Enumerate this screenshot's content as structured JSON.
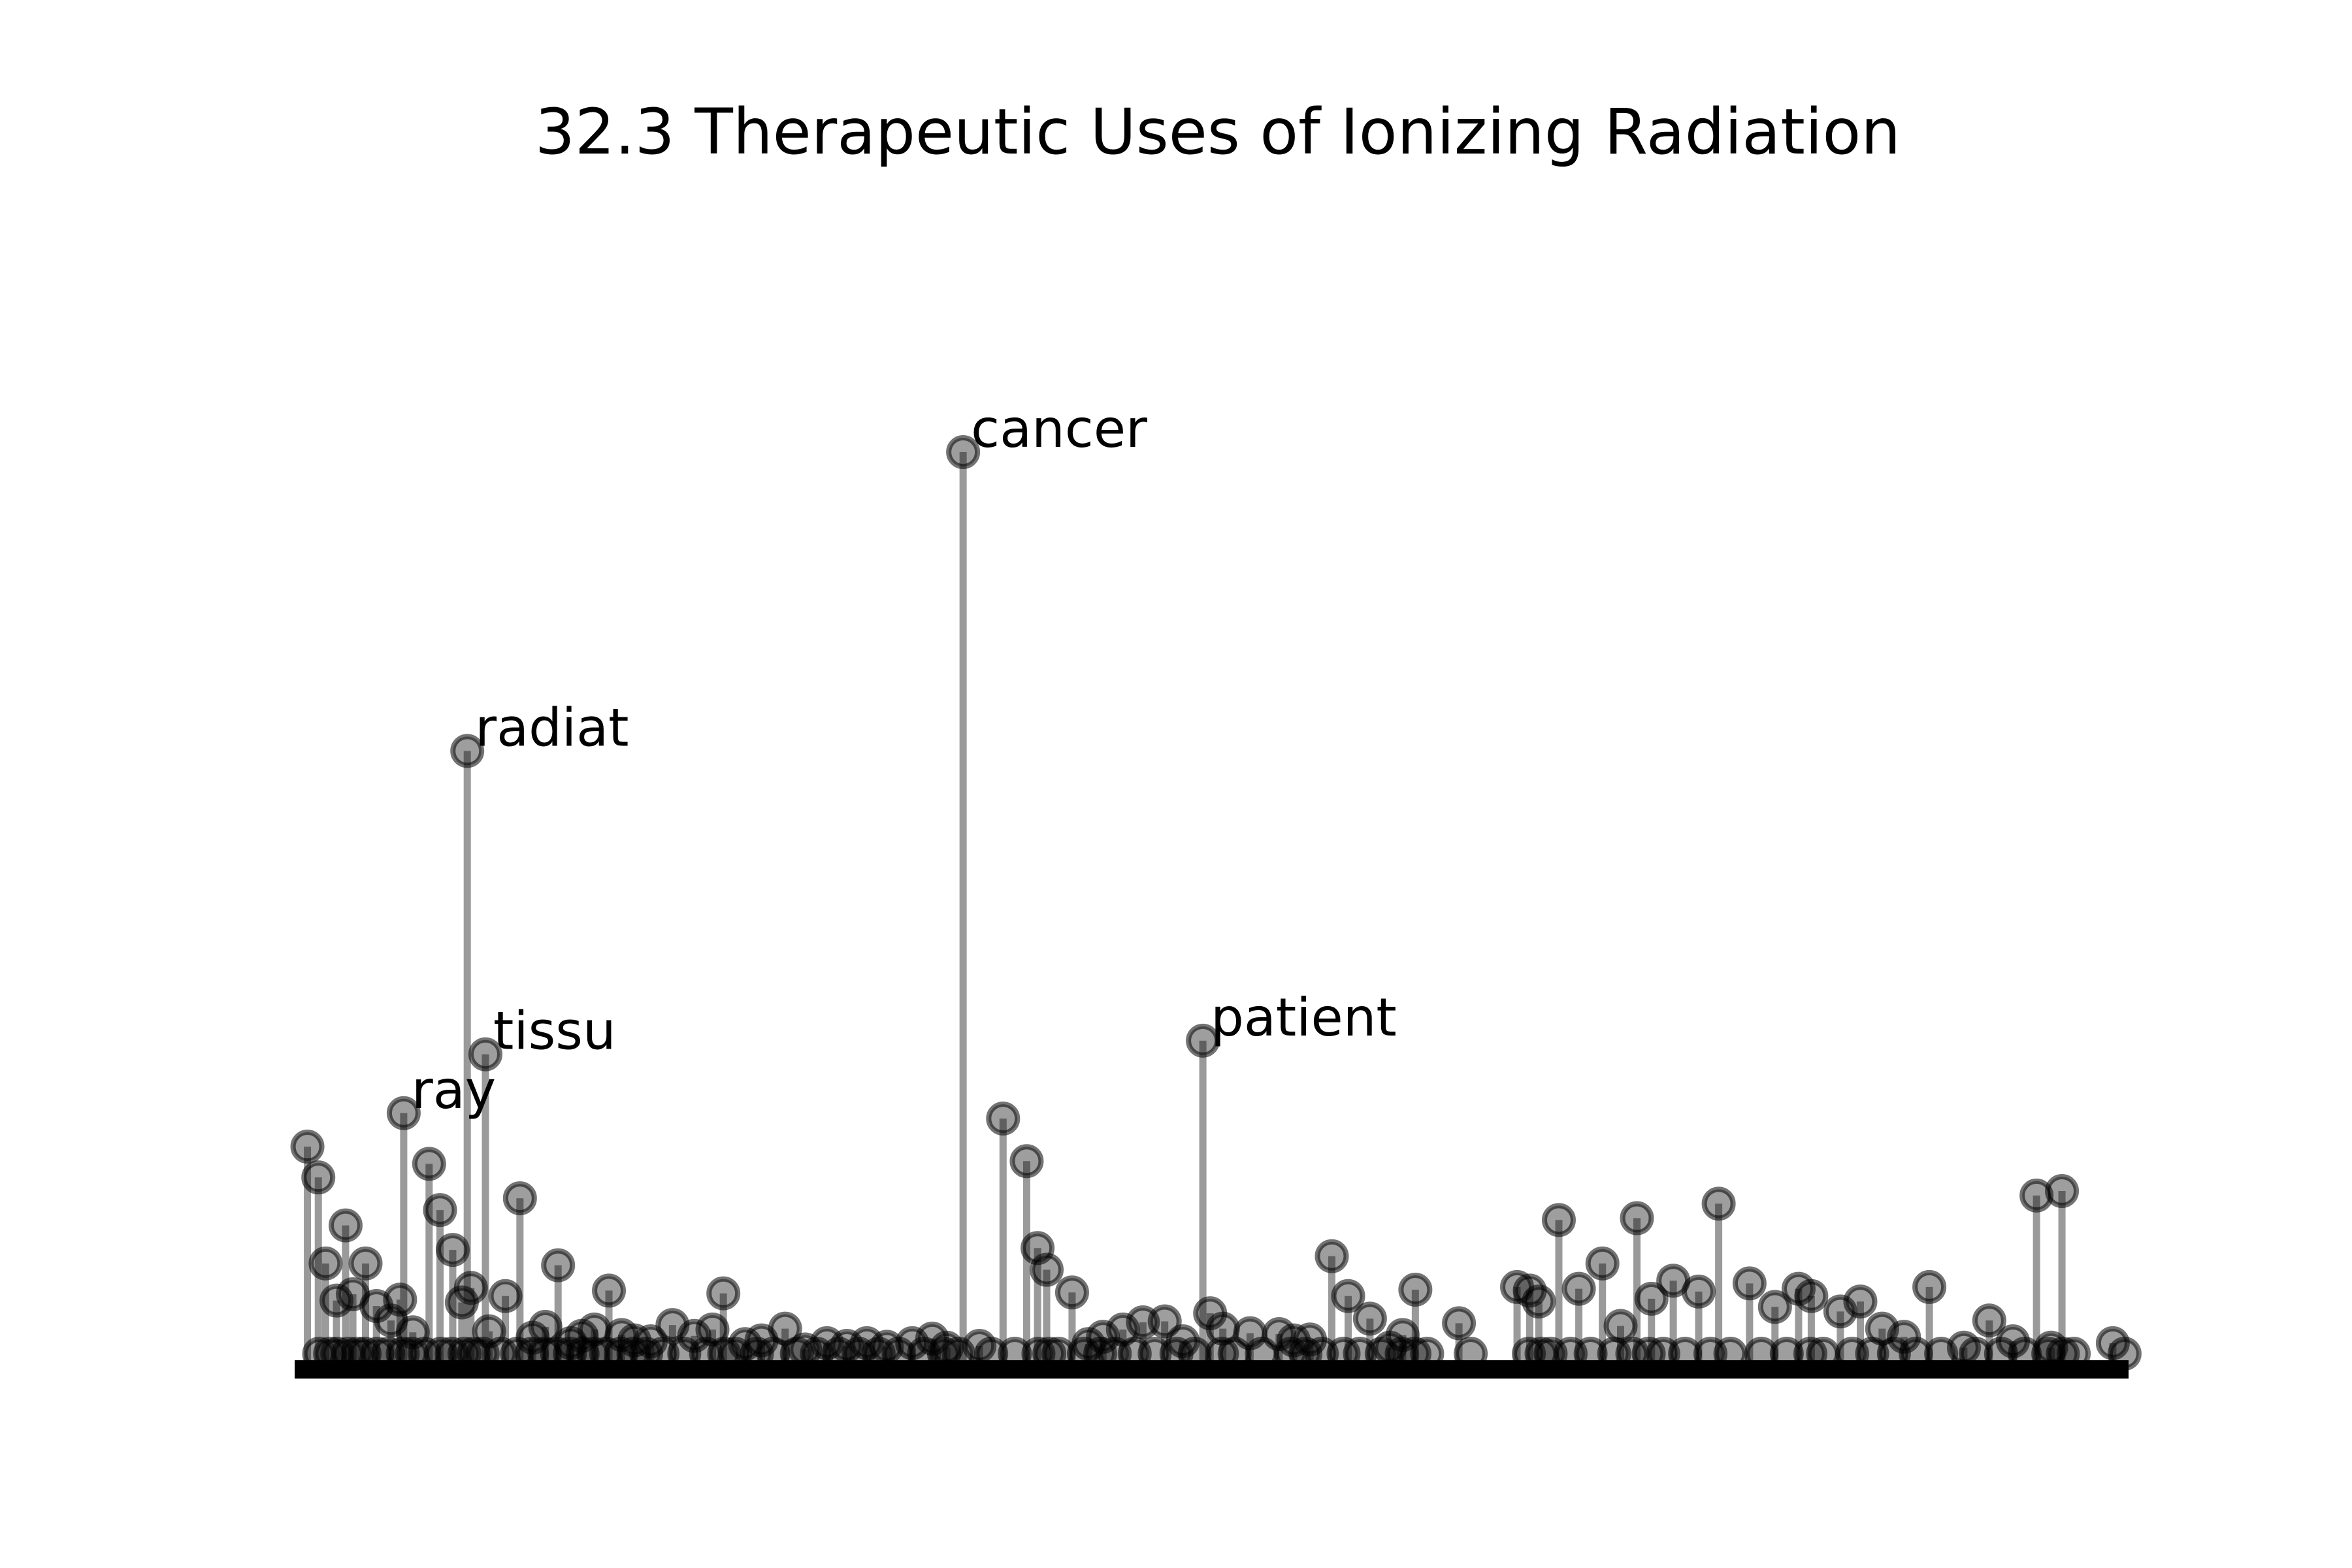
{
  "chart_data": {
    "type": "scatter",
    "subtype": "stem",
    "title": "32.3 Therapeutic Uses of Ionizing Radiation",
    "xlabel": "",
    "ylabel": "",
    "axes_visible": false,
    "grid": false,
    "marker_color": "#000000",
    "stem_color": "#9a9a9a",
    "baseline_color": "#000000",
    "xlim": [
      0,
      100
    ],
    "ylim": [
      0,
      100
    ],
    "labeled_points": [
      {
        "label": "cancer",
        "x": 36.3,
        "y": 100
      },
      {
        "label": "radiat",
        "x": 9.0,
        "y": 67
      },
      {
        "label": "patient",
        "x": 49.5,
        "y": 35
      },
      {
        "label": "tissu",
        "x": 10.0,
        "y": 33.5
      },
      {
        "label": "ray",
        "x": 5.5,
        "y": 27
      }
    ],
    "x": [
      0.2,
      0.8,
      1.2,
      1.8,
      2.3,
      2.7,
      3.4,
      4.0,
      4.8,
      5.3,
      6.0,
      6.9,
      7.5,
      8.2,
      8.7,
      9.2,
      10.2,
      11.1,
      11.9,
      12.6,
      13.3,
      14.0,
      14.7,
      15.3,
      16.0,
      16.8,
      17.5,
      18.2,
      19.1,
      20.3,
      21.5,
      22.5,
      23.1,
      24.3,
      25.2,
      26.5,
      27.6,
      28.8,
      29.9,
      31.0,
      32.1,
      33.5,
      34.6,
      35.4,
      37.2,
      38.5,
      39.8,
      40.4,
      40.9,
      42.3,
      43.2,
      44.0,
      45.1,
      46.2,
      47.4,
      48.4,
      49.9,
      50.6,
      52.1,
      53.7,
      54.5,
      55.4,
      56.6,
      57.5,
      58.7,
      59.8,
      60.5,
      61.2,
      63.6,
      66.8,
      67.5,
      68.0,
      69.1,
      70.2,
      71.5,
      72.5,
      73.4,
      74.2,
      75.4,
      76.8,
      77.9,
      79.6,
      81.0,
      82.3,
      83.0,
      84.6,
      85.7,
      86.9,
      88.1,
      89.5,
      91.4,
      92.8,
      94.1,
      95.4,
      96.2,
      96.8,
      99.6
    ],
    "y": [
      23.3,
      19.9,
      10.4,
      6.3,
      14.6,
      7.0,
      10.4,
      5.7,
      4.1,
      6.4,
      2.8,
      21.4,
      16.3,
      11.9,
      6.1,
      7.7,
      2.9,
      6.8,
      17.6,
      2.2,
      3.4,
      10.2,
      1.6,
      2.4,
      3.1,
      7.4,
      2.5,
      1.9,
      1.8,
      3.6,
      2.4,
      3.1,
      7.1,
      1.5,
      1.9,
      3.2,
      0.9,
      1.6,
      1.3,
      1.6,
      1.2,
      1.6,
      2.1,
      1.1,
      1.3,
      26.4,
      21.7,
      12.1,
      9.7,
      7.2,
      1.5,
      2.3,
      3.1,
      3.9,
      4.0,
      1.8,
      4.9,
      3.2,
      2.7,
      2.6,
      1.9,
      2.0,
      11.2,
      6.8,
      4.3,
      1.1,
      2.5,
      7.5,
      3.8,
      7.8,
      7.4,
      6.2,
      15.2,
      7.6,
      10.4,
      3.5,
      15.4,
      6.5,
      8.5,
      7.3,
      17.0,
      8.2,
      5.6,
      7.6,
      6.8,
      5.1,
      6.2,
      3.2,
      2.3,
      7.8,
      1.1,
      4.1,
      1.8,
      17.9,
      1.1,
      18.4,
      1.6
    ]
  }
}
